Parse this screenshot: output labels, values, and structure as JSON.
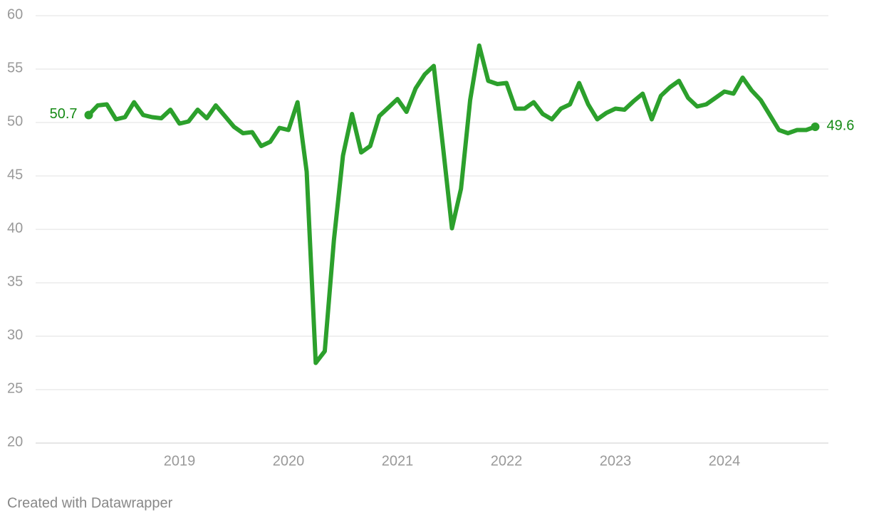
{
  "chart_data": {
    "type": "line",
    "x": [
      2018.167,
      2018.25,
      2018.333,
      2018.417,
      2018.5,
      2018.583,
      2018.667,
      2018.75,
      2018.833,
      2018.917,
      2019.0,
      2019.083,
      2019.167,
      2019.25,
      2019.333,
      2019.417,
      2019.5,
      2019.583,
      2019.667,
      2019.75,
      2019.833,
      2019.917,
      2020.0,
      2020.083,
      2020.167,
      2020.25,
      2020.333,
      2020.417,
      2020.5,
      2020.583,
      2020.667,
      2020.75,
      2020.833,
      2020.917,
      2021.0,
      2021.083,
      2021.167,
      2021.25,
      2021.333,
      2021.417,
      2021.5,
      2021.583,
      2021.667,
      2021.75,
      2021.833,
      2021.917,
      2022.0,
      2022.083,
      2022.167,
      2022.25,
      2022.333,
      2022.417,
      2022.5,
      2022.583,
      2022.667,
      2022.75,
      2022.833,
      2022.917,
      2023.0,
      2023.083,
      2023.167,
      2023.25,
      2023.333,
      2023.417,
      2023.5,
      2023.583,
      2023.667,
      2023.75,
      2023.833,
      2023.917,
      2024.0,
      2024.083,
      2024.167,
      2024.25,
      2024.333,
      2024.417,
      2024.5,
      2024.583,
      2024.667,
      2024.75,
      2024.833
    ],
    "series": [
      {
        "color": "#2ca02c",
        "label_color": "#158a15",
        "values": [
          50.7,
          51.6,
          51.7,
          50.3,
          50.5,
          51.9,
          50.7,
          50.5,
          50.4,
          51.2,
          49.9,
          50.1,
          51.2,
          50.4,
          51.6,
          50.6,
          49.6,
          49.0,
          49.1,
          47.8,
          48.2,
          49.5,
          49.3,
          51.9,
          45.4,
          27.5,
          28.6,
          39.0,
          46.9,
          50.8,
          47.2,
          47.8,
          50.6,
          51.4,
          52.2,
          51.0,
          53.2,
          54.5,
          55.3,
          47.8,
          40.1,
          43.8,
          52.1,
          57.2,
          53.9,
          53.6,
          53.7,
          51.3,
          51.3,
          51.9,
          50.8,
          50.3,
          51.3,
          51.7,
          53.7,
          51.7,
          50.3,
          50.9,
          51.3,
          51.2,
          52.0,
          52.7,
          50.3,
          52.5,
          53.3,
          53.9,
          52.3,
          51.5,
          51.7,
          52.3,
          52.9,
          52.7,
          54.2,
          53.0,
          52.1,
          50.7,
          49.3,
          49.0,
          49.3,
          49.3,
          49.6
        ]
      }
    ],
    "xlim": [
      2017.68,
      2024.954
    ],
    "xticks": [
      2019,
      2020,
      2021,
      2022,
      2023,
      2024
    ],
    "ylim": [
      20,
      60
    ],
    "yticks": [
      20,
      25,
      30,
      35,
      40,
      45,
      50,
      55,
      60
    ],
    "grid": true,
    "credit": "Created with Datawrapper"
  }
}
